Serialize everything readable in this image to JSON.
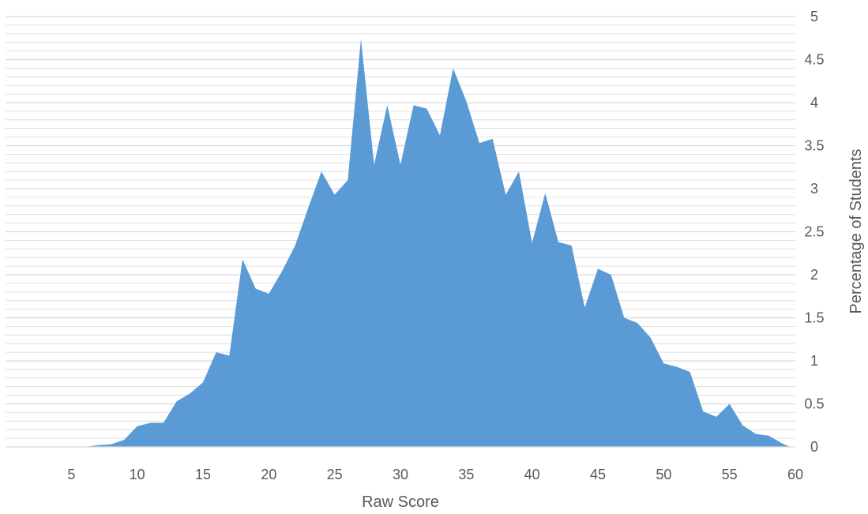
{
  "chart_data": {
    "type": "area",
    "title": "",
    "xlabel": "Raw Score",
    "ylabel": "Percentage of Students",
    "xlim": [
      0,
      60
    ],
    "ylim": [
      0,
      5
    ],
    "x_ticks": [
      "5",
      "10",
      "15",
      "20",
      "25",
      "30",
      "35",
      "40",
      "45",
      "50",
      "55",
      "60"
    ],
    "y_ticks": [
      "0",
      "0.5",
      "1",
      "1.5",
      "2",
      "2.5",
      "3",
      "3.5",
      "4",
      "4.5",
      "5"
    ],
    "y_axis_position": "right",
    "grid": true,
    "fill_color": "#5b9bd5",
    "grid_color": "#d9d9d9",
    "series": [
      {
        "x": [
          0,
          1,
          2,
          3,
          4,
          5,
          6,
          7,
          8,
          9,
          10,
          11,
          12,
          13,
          14,
          15,
          16,
          17,
          18,
          19,
          20,
          21,
          22,
          23,
          24,
          25,
          26,
          27,
          28,
          29,
          30,
          31,
          32,
          33,
          34,
          35,
          36,
          37,
          38,
          39,
          40,
          41,
          42,
          43,
          44,
          45,
          46,
          47,
          48,
          49,
          50,
          51,
          52,
          53,
          54,
          55,
          56,
          57,
          58,
          59
        ],
        "values": [
          0,
          0,
          0,
          0,
          0,
          0,
          0,
          0.02,
          0.03,
          0.08,
          0.24,
          0.28,
          0.28,
          0.53,
          0.62,
          0.75,
          1.1,
          1.06,
          2.18,
          1.84,
          1.78,
          2.04,
          2.34,
          2.78,
          3.2,
          2.93,
          3.1,
          4.74,
          3.28,
          3.97,
          3.28,
          3.97,
          3.93,
          3.62,
          4.4,
          4.02,
          3.53,
          3.58,
          2.93,
          3.2,
          2.37,
          2.95,
          2.38,
          2.34,
          1.62,
          2.07,
          2.0,
          1.5,
          1.44,
          1.27,
          0.97,
          0.93,
          0.87,
          0.41,
          0.35,
          0.5,
          0.25,
          0.15,
          0.13,
          0.04
        ]
      }
    ]
  }
}
